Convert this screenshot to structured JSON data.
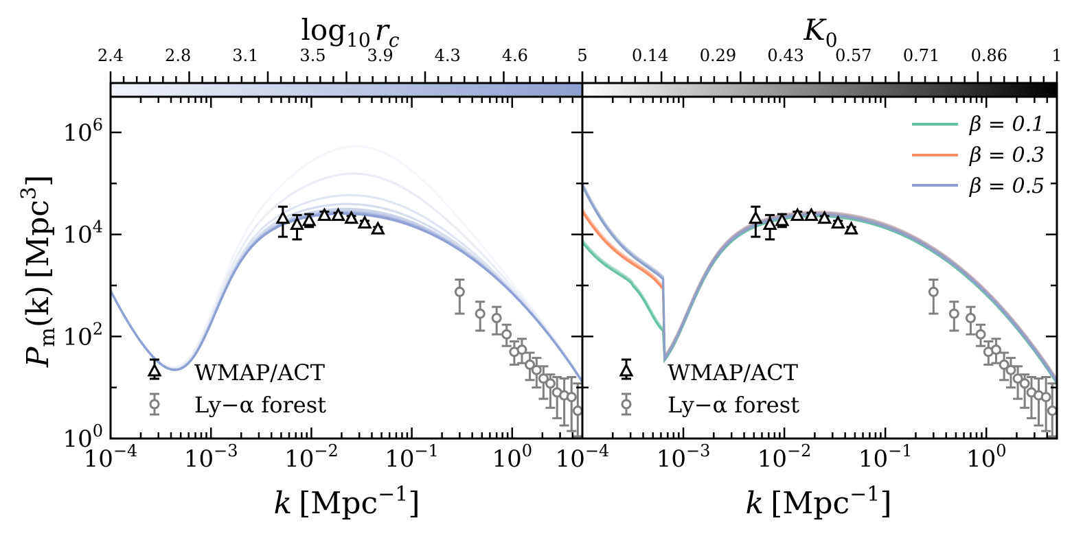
{
  "colors": {
    "rc_colormap_start": "#f2f4fa",
    "rc_colormap_end": "#8d9fd2",
    "k0_colormap_start": "#ffffff",
    "k0_colormap_end": "#000000",
    "beta_01": "#66c2a5",
    "beta_03": "#fc8d62",
    "beta_05": "#8da0cb",
    "wmap_act_marker": "#000000",
    "lya_marker": "#808080"
  },
  "colorbars": [
    {
      "label_main": "log",
      "label_sub": "10",
      "label_var": "r",
      "label_var_sub": "c",
      "ticks": [
        "2.4",
        "2.8",
        "3.1",
        "3.5",
        "3.9",
        "4.3",
        "4.6",
        "5"
      ]
    },
    {
      "label_var": "K",
      "label_var_sub": "0",
      "ticks": [
        "0.14",
        "0.29",
        "0.43",
        "0.57",
        "0.71",
        "0.86",
        "1"
      ]
    }
  ],
  "axes": {
    "ylabel": {
      "var": "P",
      "sub": "m",
      "arg": "(k)",
      "unit": "[Mpc",
      "unit_sup": "3",
      "unit_close": "]"
    },
    "xlabel": {
      "var": "k",
      "unit": "[Mpc",
      "unit_sup": "−1",
      "unit_close": "]"
    },
    "x_ticks_left": [
      {
        "base": "10",
        "exp": "−4"
      },
      {
        "base": "10",
        "exp": "−3"
      },
      {
        "base": "10",
        "exp": "−2"
      },
      {
        "base": "10",
        "exp": "−1"
      },
      {
        "base": "10",
        "exp": "0"
      }
    ],
    "x_ticks_right": [
      {
        "base": "10",
        "exp": "−4"
      },
      {
        "base": "10",
        "exp": "−3"
      },
      {
        "base": "10",
        "exp": "−2"
      },
      {
        "base": "10",
        "exp": "−1"
      },
      {
        "base": "10",
        "exp": "0"
      }
    ],
    "y_ticks": [
      {
        "base": "10",
        "exp": "0"
      },
      {
        "base": "10",
        "exp": "2"
      },
      {
        "base": "10",
        "exp": "4"
      },
      {
        "base": "10",
        "exp": "6"
      }
    ]
  },
  "legend_data": {
    "wmap": "WMAP/ACT",
    "lya": "Ly−α forest"
  },
  "legend_beta": [
    {
      "text": "β = 0.1",
      "color": "#66c2a5"
    },
    {
      "text": "β = 0.3",
      "color": "#fc8d62"
    },
    {
      "text": "β = 0.5",
      "color": "#8da0cb"
    }
  ],
  "chart_data": [
    {
      "type": "line",
      "xscale": "log",
      "yscale": "log",
      "xlim": [
        0.0001,
        5
      ],
      "ylim": [
        1,
        5000000
      ],
      "colorbar": {
        "label": "log10 rc",
        "range": [
          2.4,
          5
        ]
      },
      "model_curves_rc": [
        5.0,
        4.7,
        4.4,
        4.1,
        3.8,
        3.5,
        3.2,
        2.9,
        2.6,
        2.4
      ],
      "model_peak_values": [
        550000,
        160000,
        60000,
        40000,
        32000,
        29000,
        27500,
        26500,
        26000,
        25500
      ],
      "wmap_act": [
        {
          "k": 0.0052,
          "P": 21000,
          "err_lo": 9000,
          "err_hi": 35000
        },
        {
          "k": 0.0072,
          "P": 16000,
          "err_lo": 8000,
          "err_hi": 24000
        },
        {
          "k": 0.0095,
          "P": 19000,
          "err_lo": 14000,
          "err_hi": 25000
        },
        {
          "k": 0.0135,
          "P": 24000,
          "err_lo": 21000,
          "err_hi": 28000
        },
        {
          "k": 0.0185,
          "P": 24000,
          "err_lo": 22000,
          "err_hi": 26500
        },
        {
          "k": 0.025,
          "P": 21000,
          "err_lo": 19500,
          "err_hi": 23000
        },
        {
          "k": 0.034,
          "P": 17000,
          "err_lo": 16000,
          "err_hi": 18500
        },
        {
          "k": 0.046,
          "P": 13000,
          "err_lo": 12200,
          "err_hi": 14000
        }
      ],
      "lya_forest": [
        {
          "k": 0.3,
          "P": 750,
          "err_lo": 280,
          "err_hi": 1300
        },
        {
          "k": 0.48,
          "P": 280,
          "err_lo": 130,
          "err_hi": 480
        },
        {
          "k": 0.7,
          "P": 230,
          "err_lo": 110,
          "err_hi": 380
        },
        {
          "k": 0.88,
          "P": 110,
          "err_lo": 65,
          "err_hi": 170
        },
        {
          "k": 1.05,
          "P": 50,
          "err_lo": 28,
          "err_hi": 80
        },
        {
          "k": 1.25,
          "P": 55,
          "err_lo": 30,
          "err_hi": 90
        },
        {
          "k": 1.5,
          "P": 28,
          "err_lo": 14,
          "err_hi": 48
        },
        {
          "k": 1.75,
          "P": 22,
          "err_lo": 10,
          "err_hi": 38
        },
        {
          "k": 2.05,
          "P": 15,
          "err_lo": 6,
          "err_hi": 26
        },
        {
          "k": 2.4,
          "P": 12,
          "err_lo": 4,
          "err_hi": 18
        },
        {
          "k": 2.8,
          "P": 8,
          "err_lo": 2.5,
          "err_hi": 16
        },
        {
          "k": 3.3,
          "P": 7,
          "err_lo": 1.8,
          "err_hi": 15
        },
        {
          "k": 3.9,
          "P": 6.5,
          "err_lo": 1.4,
          "err_hi": 16
        },
        {
          "k": 4.5,
          "P": 3.5,
          "err_lo": 1.1,
          "err_hi": 12
        }
      ]
    },
    {
      "type": "line",
      "xscale": "log",
      "yscale": "log",
      "xlim": [
        0.0001,
        5
      ],
      "ylim": [
        1,
        5000000
      ],
      "colorbar": {
        "label": "K0",
        "range": [
          0,
          1
        ]
      },
      "series": [
        {
          "name": "β = 0.1",
          "P_at_kmin": 7000,
          "trough_k": 0.0003,
          "trough_P": 1800
        },
        {
          "name": "β = 0.3",
          "P_at_kmin": 28000,
          "trough_k": 0.00048,
          "trough_P": 2500
        },
        {
          "name": "β = 0.5",
          "P_at_kmin": 90000,
          "trough_k": 0.00055,
          "trough_P": 2800
        }
      ],
      "wmap_act": [
        {
          "k": 0.0052,
          "P": 21000,
          "err_lo": 9000,
          "err_hi": 35000
        },
        {
          "k": 0.0072,
          "P": 16000,
          "err_lo": 8000,
          "err_hi": 24000
        },
        {
          "k": 0.0095,
          "P": 19000,
          "err_lo": 14000,
          "err_hi": 25000
        },
        {
          "k": 0.0135,
          "P": 24000,
          "err_lo": 21000,
          "err_hi": 28000
        },
        {
          "k": 0.0185,
          "P": 24000,
          "err_lo": 22000,
          "err_hi": 26500
        },
        {
          "k": 0.025,
          "P": 21000,
          "err_lo": 19500,
          "err_hi": 23000
        },
        {
          "k": 0.034,
          "P": 17000,
          "err_lo": 16000,
          "err_hi": 18500
        },
        {
          "k": 0.046,
          "P": 13000,
          "err_lo": 12200,
          "err_hi": 14000
        }
      ],
      "lya_forest": [
        {
          "k": 0.3,
          "P": 750,
          "err_lo": 280,
          "err_hi": 1300
        },
        {
          "k": 0.48,
          "P": 280,
          "err_lo": 130,
          "err_hi": 480
        },
        {
          "k": 0.7,
          "P": 230,
          "err_lo": 110,
          "err_hi": 380
        },
        {
          "k": 0.88,
          "P": 110,
          "err_lo": 65,
          "err_hi": 170
        },
        {
          "k": 1.05,
          "P": 50,
          "err_lo": 28,
          "err_hi": 80
        },
        {
          "k": 1.25,
          "P": 55,
          "err_lo": 30,
          "err_hi": 90
        },
        {
          "k": 1.5,
          "P": 28,
          "err_lo": 14,
          "err_hi": 48
        },
        {
          "k": 1.75,
          "P": 22,
          "err_lo": 10,
          "err_hi": 38
        },
        {
          "k": 2.05,
          "P": 15,
          "err_lo": 6,
          "err_hi": 26
        },
        {
          "k": 2.4,
          "P": 12,
          "err_lo": 4,
          "err_hi": 18
        },
        {
          "k": 2.8,
          "P": 8,
          "err_lo": 2.5,
          "err_hi": 16
        },
        {
          "k": 3.3,
          "P": 7,
          "err_lo": 1.8,
          "err_hi": 15
        },
        {
          "k": 3.9,
          "P": 6.5,
          "err_lo": 1.4,
          "err_hi": 16
        },
        {
          "k": 4.5,
          "P": 3.5,
          "err_lo": 1.1,
          "err_hi": 12
        }
      ]
    }
  ]
}
